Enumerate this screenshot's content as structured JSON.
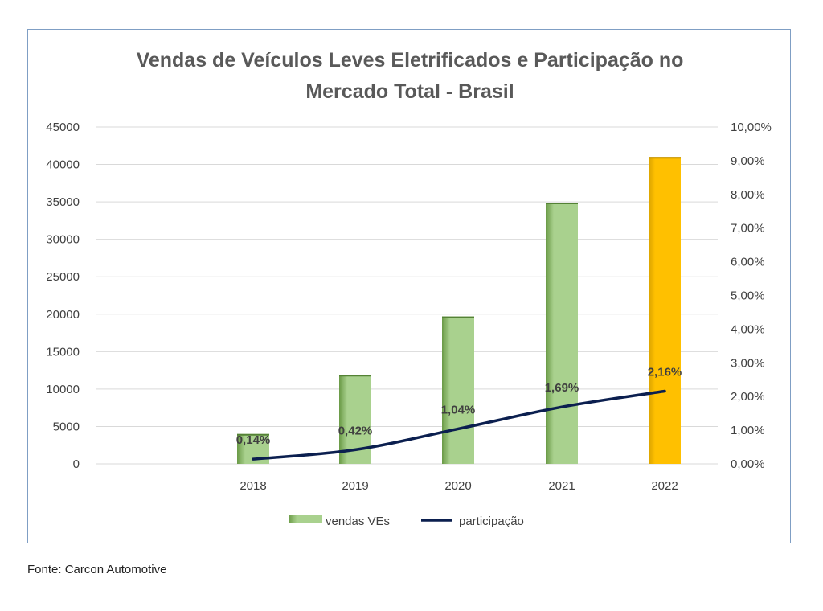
{
  "source_note": "Fonte: Carcon Automotive",
  "chart_data": {
    "type": "bar",
    "title_lines": [
      "Vendas de Veículos Leves Eletrificados e Participação no",
      "Mercado Total - Brasil"
    ],
    "categories": [
      "2018",
      "2019",
      "2020",
      "2021",
      "2022"
    ],
    "series": [
      {
        "name": "vendas VEs",
        "type": "bar",
        "axis": "left",
        "values": [
          4000,
          11900,
          19700,
          34900,
          41000
        ]
      },
      {
        "name": "participação",
        "type": "line",
        "axis": "right",
        "values": [
          0.14,
          0.42,
          1.04,
          1.69,
          2.16
        ],
        "labels": [
          "0,14%",
          "0,42%",
          "1,04%",
          "1,69%",
          "2,16%"
        ]
      }
    ],
    "y_left": {
      "min": 0,
      "max": 45000,
      "ticks": [
        "0",
        "5000",
        "10000",
        "15000",
        "20000",
        "25000",
        "30000",
        "35000",
        "40000",
        "45000"
      ]
    },
    "y_right": {
      "min": 0,
      "max": 10,
      "ticks": [
        "0,00%",
        "1,00%",
        "2,00%",
        "3,00%",
        "4,00%",
        "5,00%",
        "6,00%",
        "7,00%",
        "8,00%",
        "9,00%",
        "10,00%"
      ]
    },
    "grid": true,
    "legend_position": "bottom",
    "colors": {
      "bar": "#a9d18e",
      "bar_dark": "#548235",
      "bar_highlight": "#ffc000",
      "bar_highlight_dark": "#bf8f00",
      "line": "#0b1f4f",
      "title": "#595959",
      "axis_text": "#404040",
      "grid": "#d9d9d9",
      "label": "#404040"
    }
  }
}
